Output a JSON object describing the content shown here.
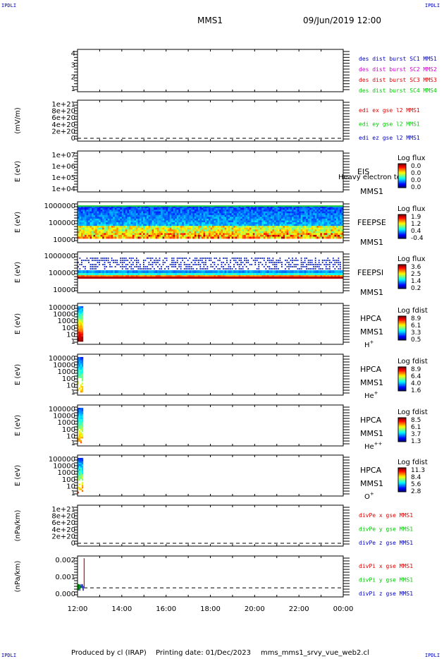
{
  "corner_label": "IPDLI",
  "header": {
    "spacecraft": "MMS1",
    "datetime": "09/Jun/2019 12:00"
  },
  "footer": {
    "produced_by": "Produced by cl (IRAP)",
    "printing_date": "Printing date: 01/Dec/2023",
    "filename": "mms_mms1_srvy_vue_web2.cl"
  },
  "colors": {
    "red": "#e00000",
    "green": "#00cc00",
    "blue": "#0000c0",
    "magenta": "#d000d0",
    "axis": "#000000"
  },
  "chart_data": {
    "type": "heatmap",
    "x_axis": {
      "ticks": [
        "12:00",
        "14:00",
        "16:00",
        "18:00",
        "20:00",
        "22:00",
        "00:00"
      ],
      "range_hours": [
        12,
        24
      ]
    },
    "panels": [
      {
        "id": "sc-burst",
        "type": "line",
        "ylabel": "",
        "yticks": [
          "4",
          "3",
          "2",
          "1"
        ],
        "legend": [
          {
            "text": "des dist burst SC1 MMS1",
            "color": "blue"
          },
          {
            "text": "des dist burst SC2 MMS2",
            "color": "magenta"
          },
          {
            "text": "des dist burst SC3 MMS3",
            "color": "red"
          },
          {
            "text": "des dist burst SC4 MMS4",
            "color": "green"
          }
        ]
      },
      {
        "id": "edi-e",
        "type": "line",
        "ylabel": "(mV/m)",
        "yticks": [
          "1e+21",
          "8e+20",
          "6e+20",
          "4e+20",
          "2e+20",
          "0"
        ],
        "zero_line": true,
        "legend": [
          {
            "text": "edi ex gse l2 MMS1",
            "color": "red"
          },
          {
            "text": "edi ey gse l2 MMS1",
            "color": "green"
          },
          {
            "text": "edi ez gse l2 MMS1",
            "color": "blue"
          }
        ]
      },
      {
        "id": "eis",
        "type": "heatmap",
        "ylabel": "E (eV)",
        "yticks": [
          "1e+07",
          "1e+06",
          "1e+05",
          "1e+04"
        ],
        "side_labels": [
          "EIS",
          "MMS1"
        ],
        "overlay_text": "Heavy electron to",
        "colorbar": {
          "title": "Log flux",
          "ticks": [
            "0.0",
            "0.0",
            "0.0",
            "0.0"
          ]
        }
      },
      {
        "id": "feepse",
        "type": "heatmap",
        "ylabel": "E (eV)",
        "yticks": [
          "1000000",
          "100000",
          "10000"
        ],
        "side_labels": [
          "FEEPSE",
          "MMS1"
        ],
        "colorbar": {
          "title": "Log flux",
          "ticks": [
            "1.9",
            "1.2",
            "0.4",
            "-0.4"
          ]
        }
      },
      {
        "id": "feepsi",
        "type": "heatmap",
        "ylabel": "E (eV)",
        "yticks": [
          "1000000",
          "100000",
          "10000"
        ],
        "side_labels": [
          "FEEPSI",
          "MMS1"
        ],
        "colorbar": {
          "title": "Log flux",
          "ticks": [
            "3.6",
            "2.5",
            "1.4",
            "0.2"
          ]
        }
      },
      {
        "id": "hpca-h",
        "type": "heatmap",
        "ylabel": "E (eV)",
        "yticks": [
          "100000",
          "10000",
          "1000",
          "100",
          "10",
          "1"
        ],
        "side_labels": [
          "HPCA",
          "MMS1"
        ],
        "species": "H",
        "species_sup": "+",
        "colorbar": {
          "title": "Log fdist",
          "ticks": [
            "8.9",
            "6.1",
            "3.3",
            "0.5"
          ]
        }
      },
      {
        "id": "hpca-he",
        "type": "heatmap",
        "ylabel": "E (eV)",
        "yticks": [
          "100000",
          "10000",
          "1000",
          "100",
          "10",
          "1"
        ],
        "side_labels": [
          "HPCA",
          "MMS1"
        ],
        "species": "He",
        "species_sup": "+",
        "colorbar": {
          "title": "Log fdist",
          "ticks": [
            "8.9",
            "6.4",
            "4.0",
            "1.6"
          ]
        }
      },
      {
        "id": "hpca-hepp",
        "type": "heatmap",
        "ylabel": "E (eV)",
        "yticks": [
          "100000",
          "10000",
          "1000",
          "100",
          "10",
          "1"
        ],
        "side_labels": [
          "HPCA",
          "MMS1"
        ],
        "species": "He",
        "species_sup": "++",
        "colorbar": {
          "title": "Log fdist",
          "ticks": [
            "8.5",
            "6.1",
            "3.7",
            "1.3"
          ]
        }
      },
      {
        "id": "hpca-o",
        "type": "heatmap",
        "ylabel": "E (eV)",
        "yticks": [
          "100000",
          "10000",
          "1000",
          "100",
          "10",
          "1"
        ],
        "side_labels": [
          "HPCA",
          "MMS1"
        ],
        "species": "O",
        "species_sup": "+",
        "colorbar": {
          "title": "Log fdist",
          "ticks": [
            "11.3",
            "8.4",
            "5.6",
            "2.8"
          ]
        }
      },
      {
        "id": "divpe",
        "type": "line",
        "ylabel": "(nPa/km)",
        "yticks": [
          "1e+21",
          "8e+20",
          "6e+20",
          "4e+20",
          "2e+20",
          "0"
        ],
        "zero_line": true,
        "legend": [
          {
            "text": "divPe x gse MMS1",
            "color": "red"
          },
          {
            "text": "divPe y gse MMS1",
            "color": "green"
          },
          {
            "text": "divPe z gse MMS1",
            "color": "blue"
          }
        ]
      },
      {
        "id": "divpi",
        "type": "line",
        "ylabel": "(nPa/km)",
        "yticks": [
          "0.002",
          "0.001",
          "0.000"
        ],
        "yrange": [
          -0.0006,
          0.0021
        ],
        "zero_line": true,
        "legend": [
          {
            "text": "divPi x gse MMS1",
            "color": "red"
          },
          {
            "text": "divPi y gse MMS1",
            "color": "green"
          },
          {
            "text": "divPi z gse MMS1",
            "color": "blue"
          }
        ],
        "spike": {
          "t_hours": 12.3,
          "peak": 0.00195
        }
      }
    ]
  }
}
